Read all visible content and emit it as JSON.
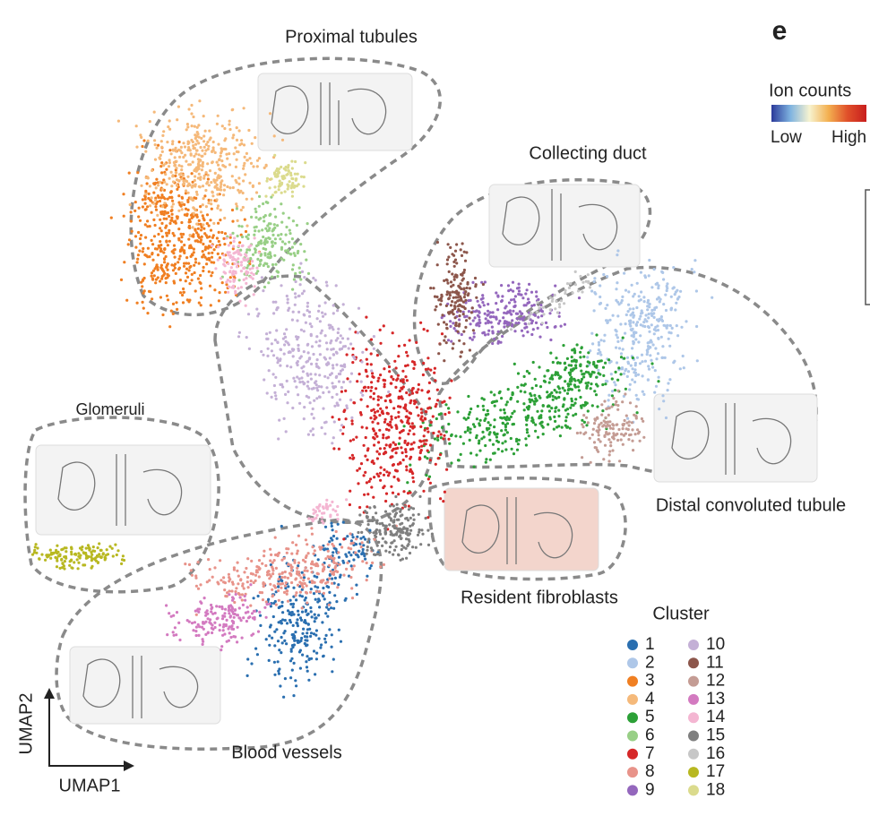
{
  "chart_data": {
    "type": "scatter",
    "panel_label": "e",
    "x_label": "UMAP1",
    "y_label": "UMAP2",
    "regions": [
      "Proximal tubules",
      "Collecting duct",
      "Glomeruli",
      "Distal convoluted tubule",
      "Resident fibroblasts",
      "Blood vessels"
    ],
    "legend_title": "Cluster",
    "series": [
      {
        "name": "1",
        "color": "#2a6fb0"
      },
      {
        "name": "2",
        "color": "#aec7e8"
      },
      {
        "name": "3",
        "color": "#f07f22"
      },
      {
        "name": "4",
        "color": "#f5b97a"
      },
      {
        "name": "5",
        "color": "#2ca037"
      },
      {
        "name": "6",
        "color": "#98cf86"
      },
      {
        "name": "7",
        "color": "#d62728"
      },
      {
        "name": "8",
        "color": "#e8938a"
      },
      {
        "name": "9",
        "color": "#9467bd"
      },
      {
        "name": "10",
        "color": "#c4b0d6"
      },
      {
        "name": "11",
        "color": "#8c564b"
      },
      {
        "name": "12",
        "color": "#c49c94"
      },
      {
        "name": "13",
        "color": "#d37ac0"
      },
      {
        "name": "14",
        "color": "#f4b6d2"
      },
      {
        "name": "15",
        "color": "#7f7f7f"
      },
      {
        "name": "16",
        "color": "#c7c7c7"
      },
      {
        "name": "17",
        "color": "#b8b821"
      },
      {
        "name": "18",
        "color": "#dbdb8d"
      }
    ],
    "colorbar": {
      "label": "Ion counts",
      "low": "Low",
      "high": "High",
      "colors": [
        "#2b3a9a",
        "#7fb3e0",
        "#f7f3d0",
        "#f3b050",
        "#e0502a",
        "#c81e1e"
      ]
    }
  }
}
